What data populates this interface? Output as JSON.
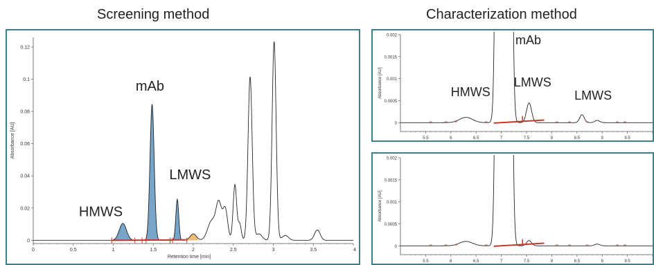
{
  "titles": {
    "left": "Screening method",
    "right": "Characterization method"
  },
  "colors": {
    "border": "#3e7f87",
    "trace": "#222222",
    "fill": "#4a87b5",
    "baseline": "#c0392b",
    "fill_orange": "#e8a040"
  },
  "chart_data": [
    {
      "type": "line",
      "panel": "screening",
      "xlabel": "Retention time [min]",
      "ylabel": "Absorbance [AU]",
      "xlim": [
        0,
        4
      ],
      "ylim": [
        -0.002,
        0.126
      ],
      "xticks": [
        0,
        0.5,
        1,
        1.5,
        2,
        2.5,
        3,
        3.5,
        4
      ],
      "xtick_labels": [
        "0",
        "0.5",
        "1",
        "1.5",
        "2",
        "2.5",
        "3",
        "3.5",
        "4"
      ],
      "yticks": [
        0,
        0.02,
        0.04,
        0.06,
        0.08,
        0.1,
        0.12
      ],
      "ytick_labels": [
        "0",
        "0.02",
        "0.04",
        "0.06",
        "0.08",
        "0.1",
        "0.12"
      ],
      "peaks": [
        {
          "x": 1.12,
          "y": 0.0105,
          "w": 0.045
        },
        {
          "x": 1.485,
          "y": 0.0845,
          "w": 0.026
        },
        {
          "x": 1.8,
          "y": 0.0255,
          "w": 0.018
        },
        {
          "x": 2.0,
          "y": 0.004,
          "w": 0.04
        },
        {
          "x": 2.23,
          "y": 0.012,
          "w": 0.05
        },
        {
          "x": 2.32,
          "y": 0.022,
          "w": 0.035
        },
        {
          "x": 2.4,
          "y": 0.019,
          "w": 0.03
        },
        {
          "x": 2.52,
          "y": 0.0345,
          "w": 0.022
        },
        {
          "x": 2.58,
          "y": 0.01,
          "w": 0.02
        },
        {
          "x": 2.71,
          "y": 0.1015,
          "w": 0.026
        },
        {
          "x": 2.82,
          "y": 0.004,
          "w": 0.04
        },
        {
          "x": 3.01,
          "y": 0.1235,
          "w": 0.025
        },
        {
          "x": 3.15,
          "y": 0.003,
          "w": 0.04
        },
        {
          "x": 3.55,
          "y": 0.0065,
          "w": 0.035
        }
      ],
      "filled_regions": [
        [
          0.98,
          1.27
        ],
        [
          1.36,
          1.71
        ],
        [
          1.74,
          1.92
        ]
      ],
      "annotations": [
        {
          "label": "mAb",
          "x": 1.28,
          "y": 0.093
        },
        {
          "label": "LMWS",
          "x": 1.7,
          "y": 0.038
        },
        {
          "label": "HMWS",
          "x": 0.57,
          "y": 0.015
        }
      ]
    },
    {
      "type": "line",
      "panel": "characterization-top",
      "ylabel": "Absorbance [AU]",
      "xlim": [
        5,
        10
      ],
      "ylim": [
        -0.0002,
        0.002
      ],
      "xticks": [
        5.5,
        6,
        6.5,
        7,
        7.5,
        8,
        8.5,
        9,
        9.5,
        10
      ],
      "xtick_labels": [
        "5.5",
        "6",
        "6.5",
        "7",
        "7.5",
        "8",
        "8.5",
        "9",
        "9.5",
        "10"
      ],
      "yticks": [
        0,
        0.0005,
        0.001,
        0.0015,
        0.002
      ],
      "ytick_labels": [
        "0",
        "0.0005",
        "0.001",
        "0.0015",
        "0.002"
      ],
      "peaks": [
        {
          "x": 6.3,
          "y": 0.00012,
          "w": 0.13
        },
        {
          "x": 7.0,
          "y": 0.06,
          "w": 0.055
        },
        {
          "x": 7.1,
          "y": 0.06,
          "w": 0.055
        },
        {
          "x": 7.55,
          "y": 0.00045,
          "w": 0.05
        },
        {
          "x": 8.6,
          "y": 0.00018,
          "w": 0.045
        },
        {
          "x": 8.9,
          "y": 5e-05,
          "w": 0.05
        }
      ],
      "annotations": [
        {
          "label": "mAb",
          "x": 7.28,
          "y": 0.00178
        },
        {
          "label": "LMWS",
          "x": 7.25,
          "y": 0.00082
        },
        {
          "label": "HMWS",
          "x": 6.0,
          "y": 0.0006
        },
        {
          "label": "LMWS",
          "x": 8.45,
          "y": 0.00052
        }
      ]
    },
    {
      "type": "line",
      "panel": "characterization-bottom",
      "ylabel": "Absorbance [AU]",
      "xlim": [
        5,
        10
      ],
      "ylim": [
        -0.0002,
        0.002
      ],
      "xticks": [
        5.5,
        6,
        6.5,
        7,
        7.5,
        8,
        8.5,
        9,
        9.5,
        10
      ],
      "xtick_labels": [
        "5.5",
        "6",
        "6.5",
        "7",
        "7.5",
        "8",
        "8.5",
        "9",
        "9.5",
        "10"
      ],
      "yticks": [
        0,
        0.0005,
        0.001,
        0.0015,
        0.002
      ],
      "ytick_labels": [
        "0",
        "0.0005",
        "0.001",
        "0.0015",
        "0.002"
      ],
      "peaks": [
        {
          "x": 6.3,
          "y": 0.0001,
          "w": 0.13
        },
        {
          "x": 7.0,
          "y": 0.06,
          "w": 0.055
        },
        {
          "x": 7.1,
          "y": 0.06,
          "w": 0.055
        },
        {
          "x": 7.55,
          "y": 0.00012,
          "w": 0.05
        },
        {
          "x": 8.9,
          "y": 4e-05,
          "w": 0.05
        }
      ],
      "annotations": []
    }
  ]
}
